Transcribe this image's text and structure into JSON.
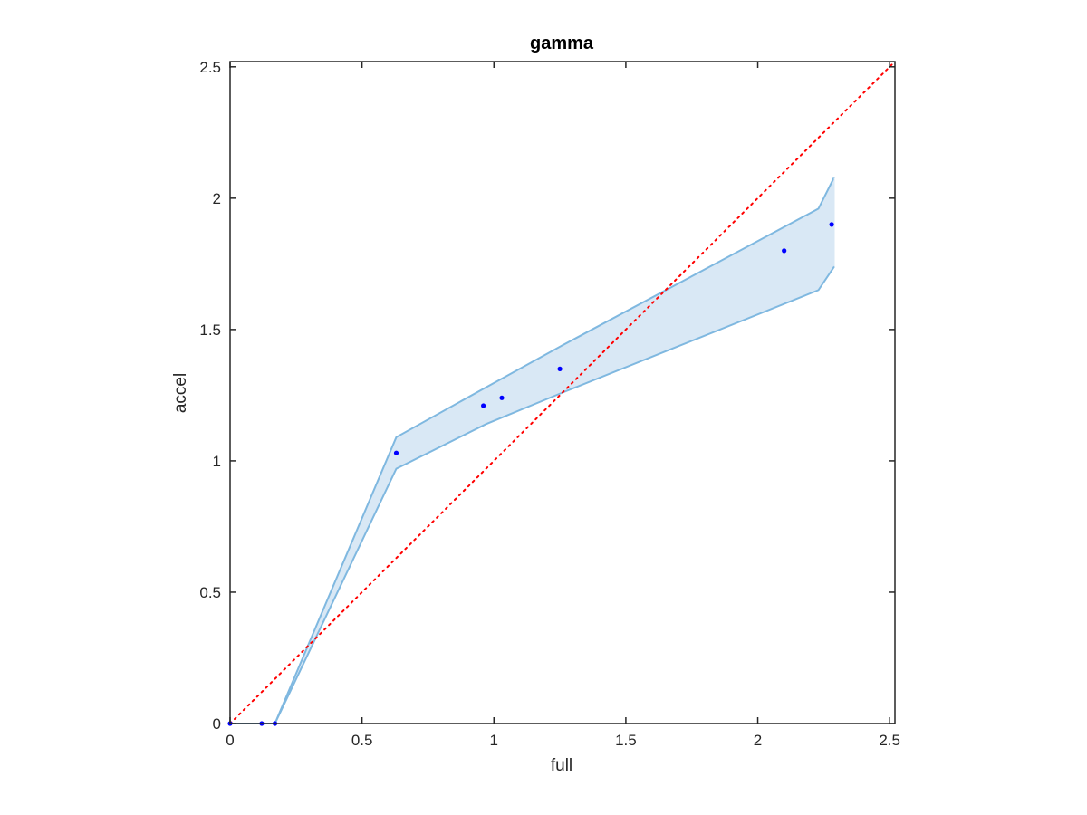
{
  "chart_data": {
    "type": "line",
    "title": "gamma",
    "xlabel": "full",
    "ylabel": "accel",
    "xlim": [
      0,
      2.52
    ],
    "ylim": [
      0,
      2.52
    ],
    "xticks": [
      0,
      0.5,
      1,
      1.5,
      2,
      2.5
    ],
    "yticks": [
      0,
      0.5,
      1,
      1.5,
      2,
      2.5
    ],
    "xtick_labels": [
      "0",
      "0.5",
      "1",
      "1.5",
      "2",
      "2.5"
    ],
    "ytick_labels": [
      "0",
      "0.5",
      "1",
      "1.5",
      "2",
      "2.5"
    ],
    "grid": false,
    "box": true,
    "series": [
      {
        "kind": "band",
        "color": "#7fb8e0",
        "fill_color": "#d9e8f5",
        "x": [
          0,
          0.13,
          0.17,
          0.63,
          0.97,
          1.26,
          2.23,
          2.29
        ],
        "upper": [
          0,
          0,
          0,
          1.09,
          1.28,
          1.44,
          1.96,
          2.08
        ],
        "lower": [
          0,
          0,
          0,
          0.97,
          1.14,
          1.26,
          1.65,
          1.74
        ]
      },
      {
        "kind": "points",
        "color": "#0000ff",
        "x": [
          0,
          0.12,
          0.17,
          0.63,
          0.96,
          1.03,
          1.25,
          2.1,
          2.28
        ],
        "y": [
          0,
          0,
          0,
          1.03,
          1.21,
          1.24,
          1.35,
          1.8,
          1.9
        ]
      },
      {
        "kind": "reference",
        "style": "dotted",
        "color": "#ff0000",
        "x": [
          0,
          2.52
        ],
        "y": [
          0,
          2.52
        ]
      }
    ]
  }
}
